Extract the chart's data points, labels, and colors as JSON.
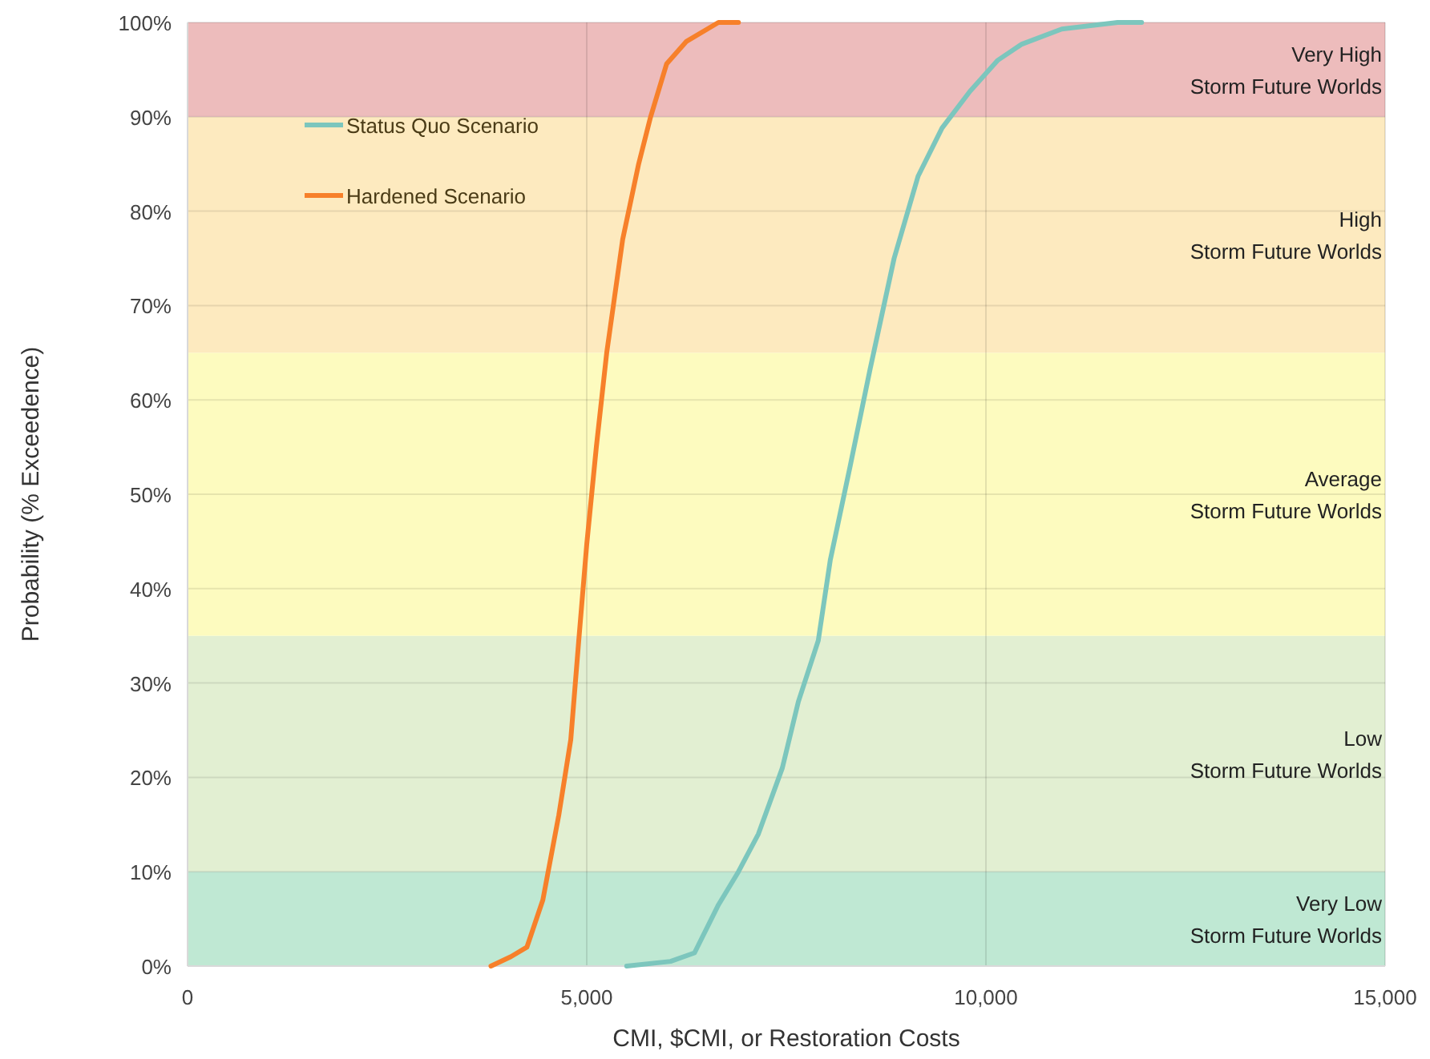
{
  "chart_data": {
    "type": "line",
    "xlabel": "CMI, $CMI, or Restoration Costs",
    "ylabel": "Probability (% Exceedence)",
    "xlim": [
      0,
      15000
    ],
    "xticks": [
      0,
      {
        "value": 5000,
        "label": "5,000"
      },
      {
        "value": 10000,
        "label": "10,000"
      },
      {
        "value": 15000,
        "label": "15,000"
      }
    ],
    "ylim": [
      0,
      100
    ],
    "yticks": [
      {
        "value": 0,
        "label": "0%"
      },
      {
        "value": 10,
        "label": "10%"
      },
      {
        "value": 20,
        "label": "20%"
      },
      {
        "value": 30,
        "label": "30%"
      },
      {
        "value": 40,
        "label": "40%"
      },
      {
        "value": 50,
        "label": "50%"
      },
      {
        "value": 60,
        "label": "60%"
      },
      {
        "value": 70,
        "label": "70%"
      },
      {
        "value": 80,
        "label": "80%"
      },
      {
        "value": 90,
        "label": "90%"
      },
      {
        "value": 100,
        "label": "100%"
      }
    ],
    "grid": true,
    "legend": "top left",
    "marker": "none",
    "line_style": "solid",
    "bands": [
      {
        "axis": "y",
        "from": 0,
        "to": 10,
        "label": "Very Low\nStorm Future Worlds",
        "color": "#bfe8d3"
      },
      {
        "axis": "y",
        "from": 10,
        "to": 35,
        "label": "Low\nStorm Future Worlds",
        "color": "#e2efd2"
      },
      {
        "axis": "y",
        "from": 35,
        "to": 65,
        "label": "Average\nStorm Future Worlds",
        "color": "#fdfbbf"
      },
      {
        "axis": "y",
        "from": 65,
        "to": 90,
        "label": "High\nStorm Future Worlds",
        "color": "#fdeabf"
      },
      {
        "axis": "y",
        "from": 90,
        "to": 100,
        "label": "Very High\nStorm Future Worlds",
        "color": "#edbcbc"
      }
    ],
    "series": [
      {
        "name": "Status Quo Scenario",
        "color": "#7cc6bd",
        "x": [
          5500,
          6050,
          6350,
          6650,
          6900,
          7150,
          7450,
          7650,
          7900,
          8050,
          8300,
          8550,
          8850,
          9150,
          9450,
          9800,
          10150,
          10450,
          10950,
          11650,
          11950
        ],
        "values": [
          0,
          0.5,
          1.4,
          6.5,
          10,
          14,
          21,
          28,
          34.5,
          43,
          53,
          63.3,
          75,
          83.7,
          88.8,
          92.7,
          96,
          97.7,
          99.3,
          100,
          100
        ]
      },
      {
        "name": "Hardened Scenario",
        "color": "#f7802a",
        "x": [
          3800,
          4050,
          4250,
          4450,
          4650,
          4800,
          4900,
          5000,
          5120,
          5250,
          5450,
          5650,
          5800,
          6000,
          6250,
          6650,
          6900
        ],
        "values": [
          0,
          1,
          2,
          7,
          16,
          24,
          34.5,
          44.7,
          55,
          65,
          77,
          85,
          90,
          95.6,
          98,
          100,
          100
        ]
      }
    ]
  }
}
